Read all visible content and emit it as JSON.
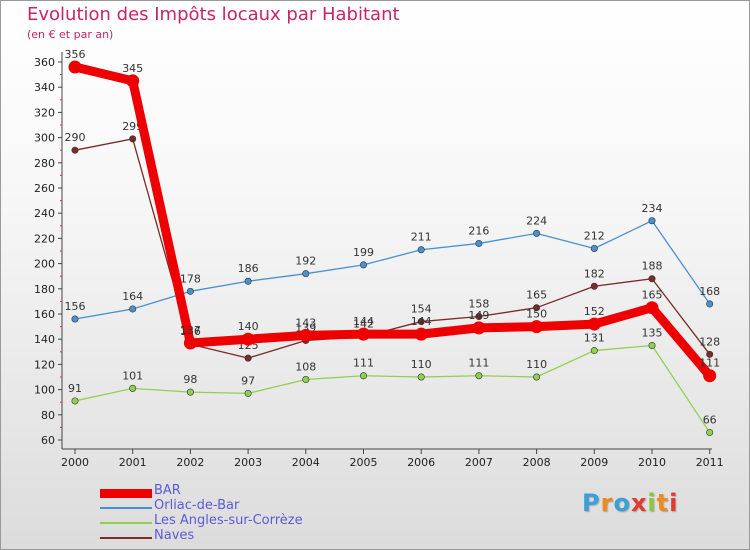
{
  "title": "Evolution des Impôts locaux par Habitant",
  "subtitle": "(en € et par an)",
  "logo": {
    "text": "Proxiti",
    "colors": [
      "#3aa0d8",
      "#f08a1c",
      "#3aa0d8",
      "#e23b2e",
      "#8cc63f",
      "#f08a1c",
      "#e23b2e"
    ]
  },
  "chart_data": {
    "type": "line",
    "x": [
      "2000",
      "2001",
      "2002",
      "2003",
      "2004",
      "2005",
      "2006",
      "2007",
      "2008",
      "2009",
      "2010",
      "2011"
    ],
    "ylim": [
      60,
      360
    ],
    "yticks": [
      60,
      80,
      100,
      120,
      140,
      160,
      180,
      200,
      220,
      240,
      260,
      280,
      300,
      320,
      340,
      360
    ],
    "grid": false,
    "legend_position": "bottom-left",
    "series": [
      {
        "name": "Naves",
        "color": "#7a2a2a",
        "values": [
          290,
          299,
          136,
          125,
          139,
          142,
          154,
          158,
          165,
          182,
          188,
          128
        ],
        "labels": [
          "290",
          "299",
          "136",
          "125",
          "139",
          "142",
          "154",
          "158",
          "165",
          "182",
          "188",
          "128"
        ]
      },
      {
        "name": "Orliac-de-Bar",
        "color": "#4a90d0",
        "values": [
          156,
          164,
          178,
          186,
          192,
          199,
          211,
          216,
          224,
          212,
          234,
          168
        ],
        "labels": [
          "156",
          "164",
          "178",
          "186",
          "192",
          "199",
          "211",
          "216",
          "224",
          "212",
          "234",
          "168"
        ]
      },
      {
        "name": "Les Angles-sur-Corrèze",
        "color": "#8fd14f",
        "values": [
          91,
          101,
          98,
          97,
          108,
          111,
          110,
          111,
          110,
          131,
          135,
          66
        ],
        "labels": [
          "91",
          "101",
          "98",
          "97",
          "108",
          "111",
          "110",
          "111",
          "110",
          "131",
          "135",
          "66"
        ]
      },
      {
        "name": "BAR",
        "color": "#ee0000",
        "values": [
          356,
          345,
          137,
          140,
          143,
          144,
          144,
          149,
          150,
          152,
          165,
          111
        ],
        "labels": [
          "356",
          "345",
          "137",
          "140",
          "143",
          "144",
          "144",
          "149",
          "150",
          "152",
          "165",
          "111"
        ]
      }
    ],
    "legend": [
      "BAR",
      "Orliac-de-Bar",
      "Les Angles-sur-Corrèze",
      "Naves"
    ]
  }
}
